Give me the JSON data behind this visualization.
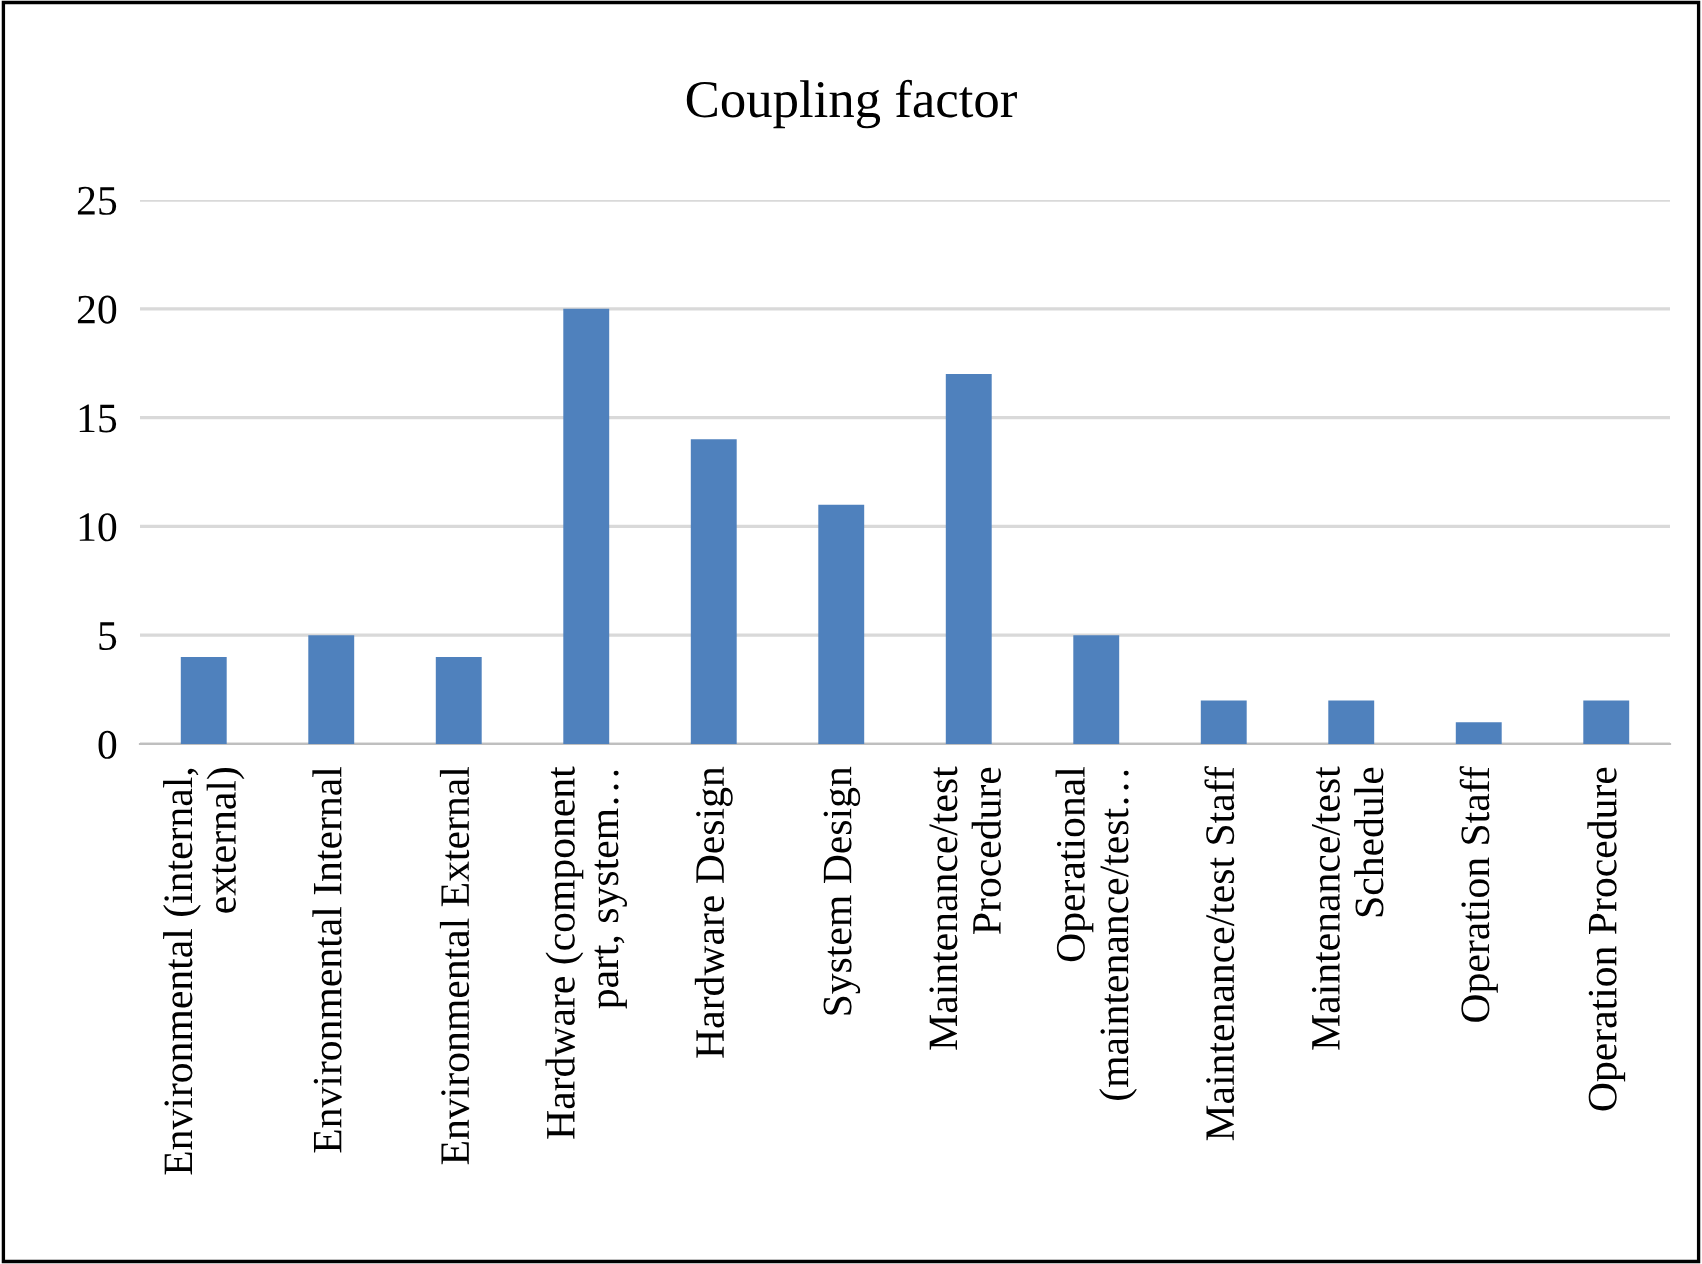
{
  "chart_data": {
    "type": "bar",
    "title": "Coupling factor",
    "categories": [
      "Environmental (internal,\nexternal)",
      "Environmental Internal",
      "Environmental External",
      "Hardware (component\npart, system…",
      "Hardware Design",
      "System Design",
      "Maintenance/test\nProcedure",
      "Operational\n(maintenance/test…",
      "Maintenance/test Staff",
      "Maintenance/test\nSchedule",
      "Operation Staff",
      "Operation Procedure"
    ],
    "values": [
      4,
      5,
      4,
      20,
      14,
      11,
      17,
      5,
      2,
      2,
      1,
      2
    ],
    "color": "#4f81bd",
    "ylim": [
      0,
      25
    ],
    "yticks": [
      0,
      5,
      10,
      15,
      20,
      25
    ],
    "grid": "y"
  }
}
